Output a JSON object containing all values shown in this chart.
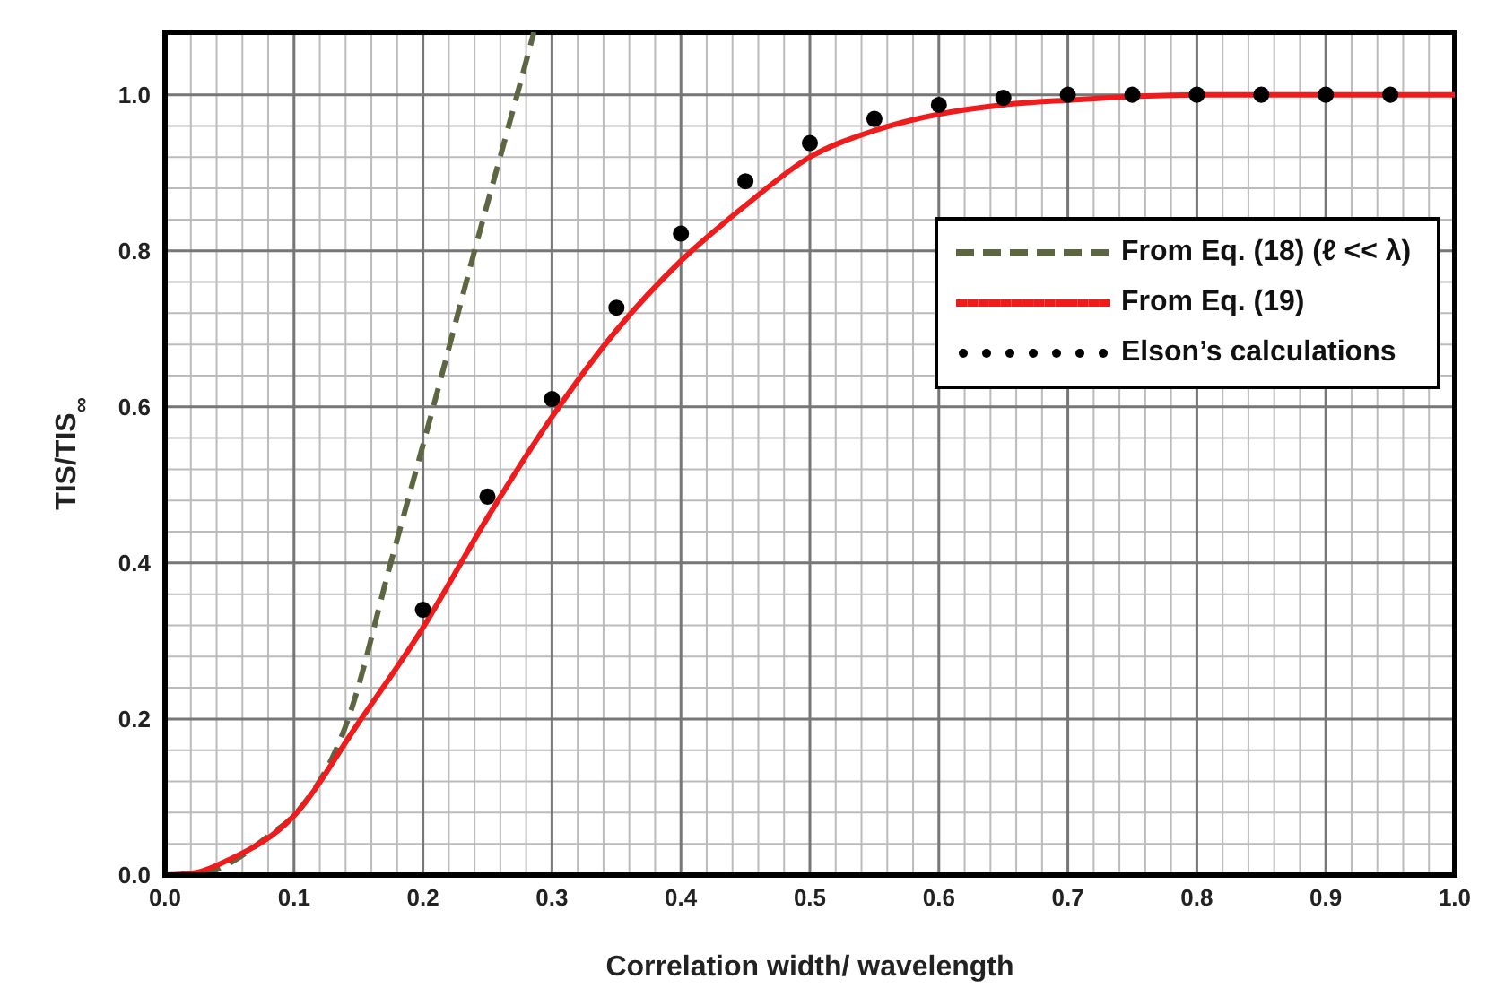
{
  "chart_data": {
    "type": "line",
    "xlabel": "Correlation width/ wavelength",
    "ylabel": "TIS/TIS$_{∞}$",
    "xlim": [
      0,
      1
    ],
    "ylim": [
      0,
      1.08
    ],
    "xticks": [
      {
        "value": 0,
        "label": "0.0"
      },
      {
        "value": 0.1,
        "label": "0.1"
      },
      {
        "value": 0.2,
        "label": "0.2"
      },
      {
        "value": 0.3,
        "label": "0.3"
      },
      {
        "value": 0.4,
        "label": "0.4"
      },
      {
        "value": 0.5,
        "label": "0.5"
      },
      {
        "value": 0.6,
        "label": "0.6"
      },
      {
        "value": 0.7,
        "label": "0.7"
      },
      {
        "value": 0.8,
        "label": "0.8"
      },
      {
        "value": 0.9,
        "label": "0.9"
      },
      {
        "value": 1,
        "label": "1.0"
      }
    ],
    "yticks": [
      {
        "value": 0,
        "label": "0.0"
      },
      {
        "value": 0.2,
        "label": "0.2"
      },
      {
        "value": 0.4,
        "label": "0.4"
      },
      {
        "value": 0.6,
        "label": "0.6"
      },
      {
        "value": 0.8,
        "label": "0.8"
      },
      {
        "value": 1,
        "label": "1.0"
      }
    ],
    "grid": true,
    "legend": "right",
    "series": [
      {
        "name": "From Eq. (18) (ℓ << λ)",
        "line_style": "dashed",
        "color": "#5c6642",
        "x": [
          0.03,
          0.05,
          0.08,
          0.102,
          0.142,
          0.175,
          0.208,
          0.24,
          0.273,
          0.286
        ],
        "values": [
          0,
          0.015,
          0.05,
          0.08,
          0.2,
          0.4,
          0.6,
          0.8,
          1.0,
          1.08
        ]
      },
      {
        "name": "From Eq. (19)",
        "line_style": "solid",
        "color": "#ee1c1c",
        "x": [
          0,
          0.02,
          0.05,
          0.1,
          0.15,
          0.2,
          0.25,
          0.3,
          0.35,
          0.4,
          0.45,
          0.5,
          0.55,
          0.6,
          0.65,
          0.7,
          0.8,
          0.9,
          1.0
        ],
        "values": [
          0,
          0.002,
          0.02,
          0.076,
          0.195,
          0.317,
          0.458,
          0.587,
          0.698,
          0.787,
          0.858,
          0.92,
          0.954,
          0.975,
          0.987,
          0.993,
          1.0,
          1.0,
          1.0
        ]
      },
      {
        "name": "Elson’s calculations",
        "type": "scatter",
        "marker": "circle",
        "color": "#000000",
        "x": [
          0.2,
          0.25,
          0.3,
          0.35,
          0.4,
          0.45,
          0.5,
          0.55,
          0.6,
          0.65,
          0.7,
          0.75,
          0.8,
          0.85,
          0.9,
          0.95
        ],
        "values": [
          0.34,
          0.485,
          0.61,
          0.727,
          0.822,
          0.889,
          0.938,
          0.969,
          0.987,
          0.996,
          1.0,
          1.0,
          1.0,
          1.0,
          1.0,
          1.0
        ]
      }
    ]
  }
}
